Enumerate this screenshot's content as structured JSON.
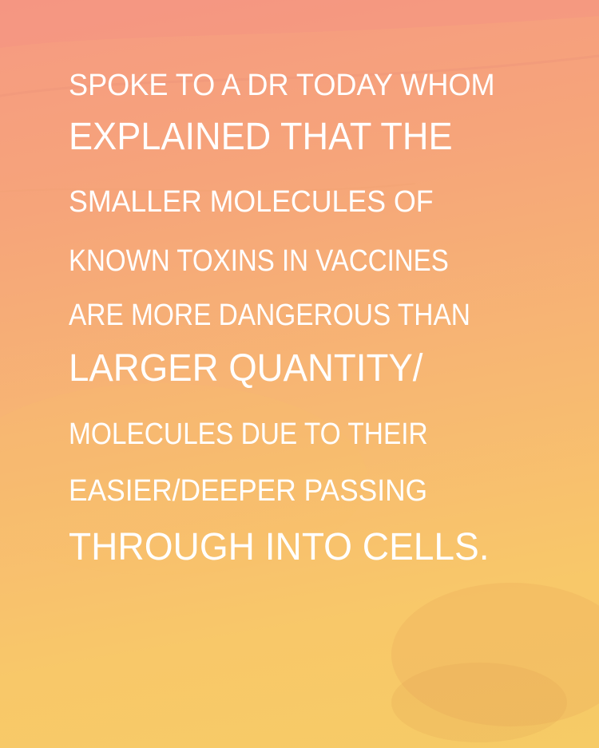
{
  "story": {
    "lines": [
      "SPOKE TO A DR TODAY WHOM",
      "EXPLAINED THAT THE",
      "SMALLER MOLECULES OF",
      "KNOWN TOXINS IN VACCINES",
      "ARE MORE DANGEROUS THAN",
      "LARGER QUANTITY/",
      "MOLECULES DUE TO THEIR",
      "EASIER/DEEPER PASSING",
      "THROUGH INTO CELLS."
    ]
  },
  "colors": {
    "text": "#ffffff",
    "gradient_top": "#f69a82",
    "gradient_bottom": "#f6cb66"
  }
}
